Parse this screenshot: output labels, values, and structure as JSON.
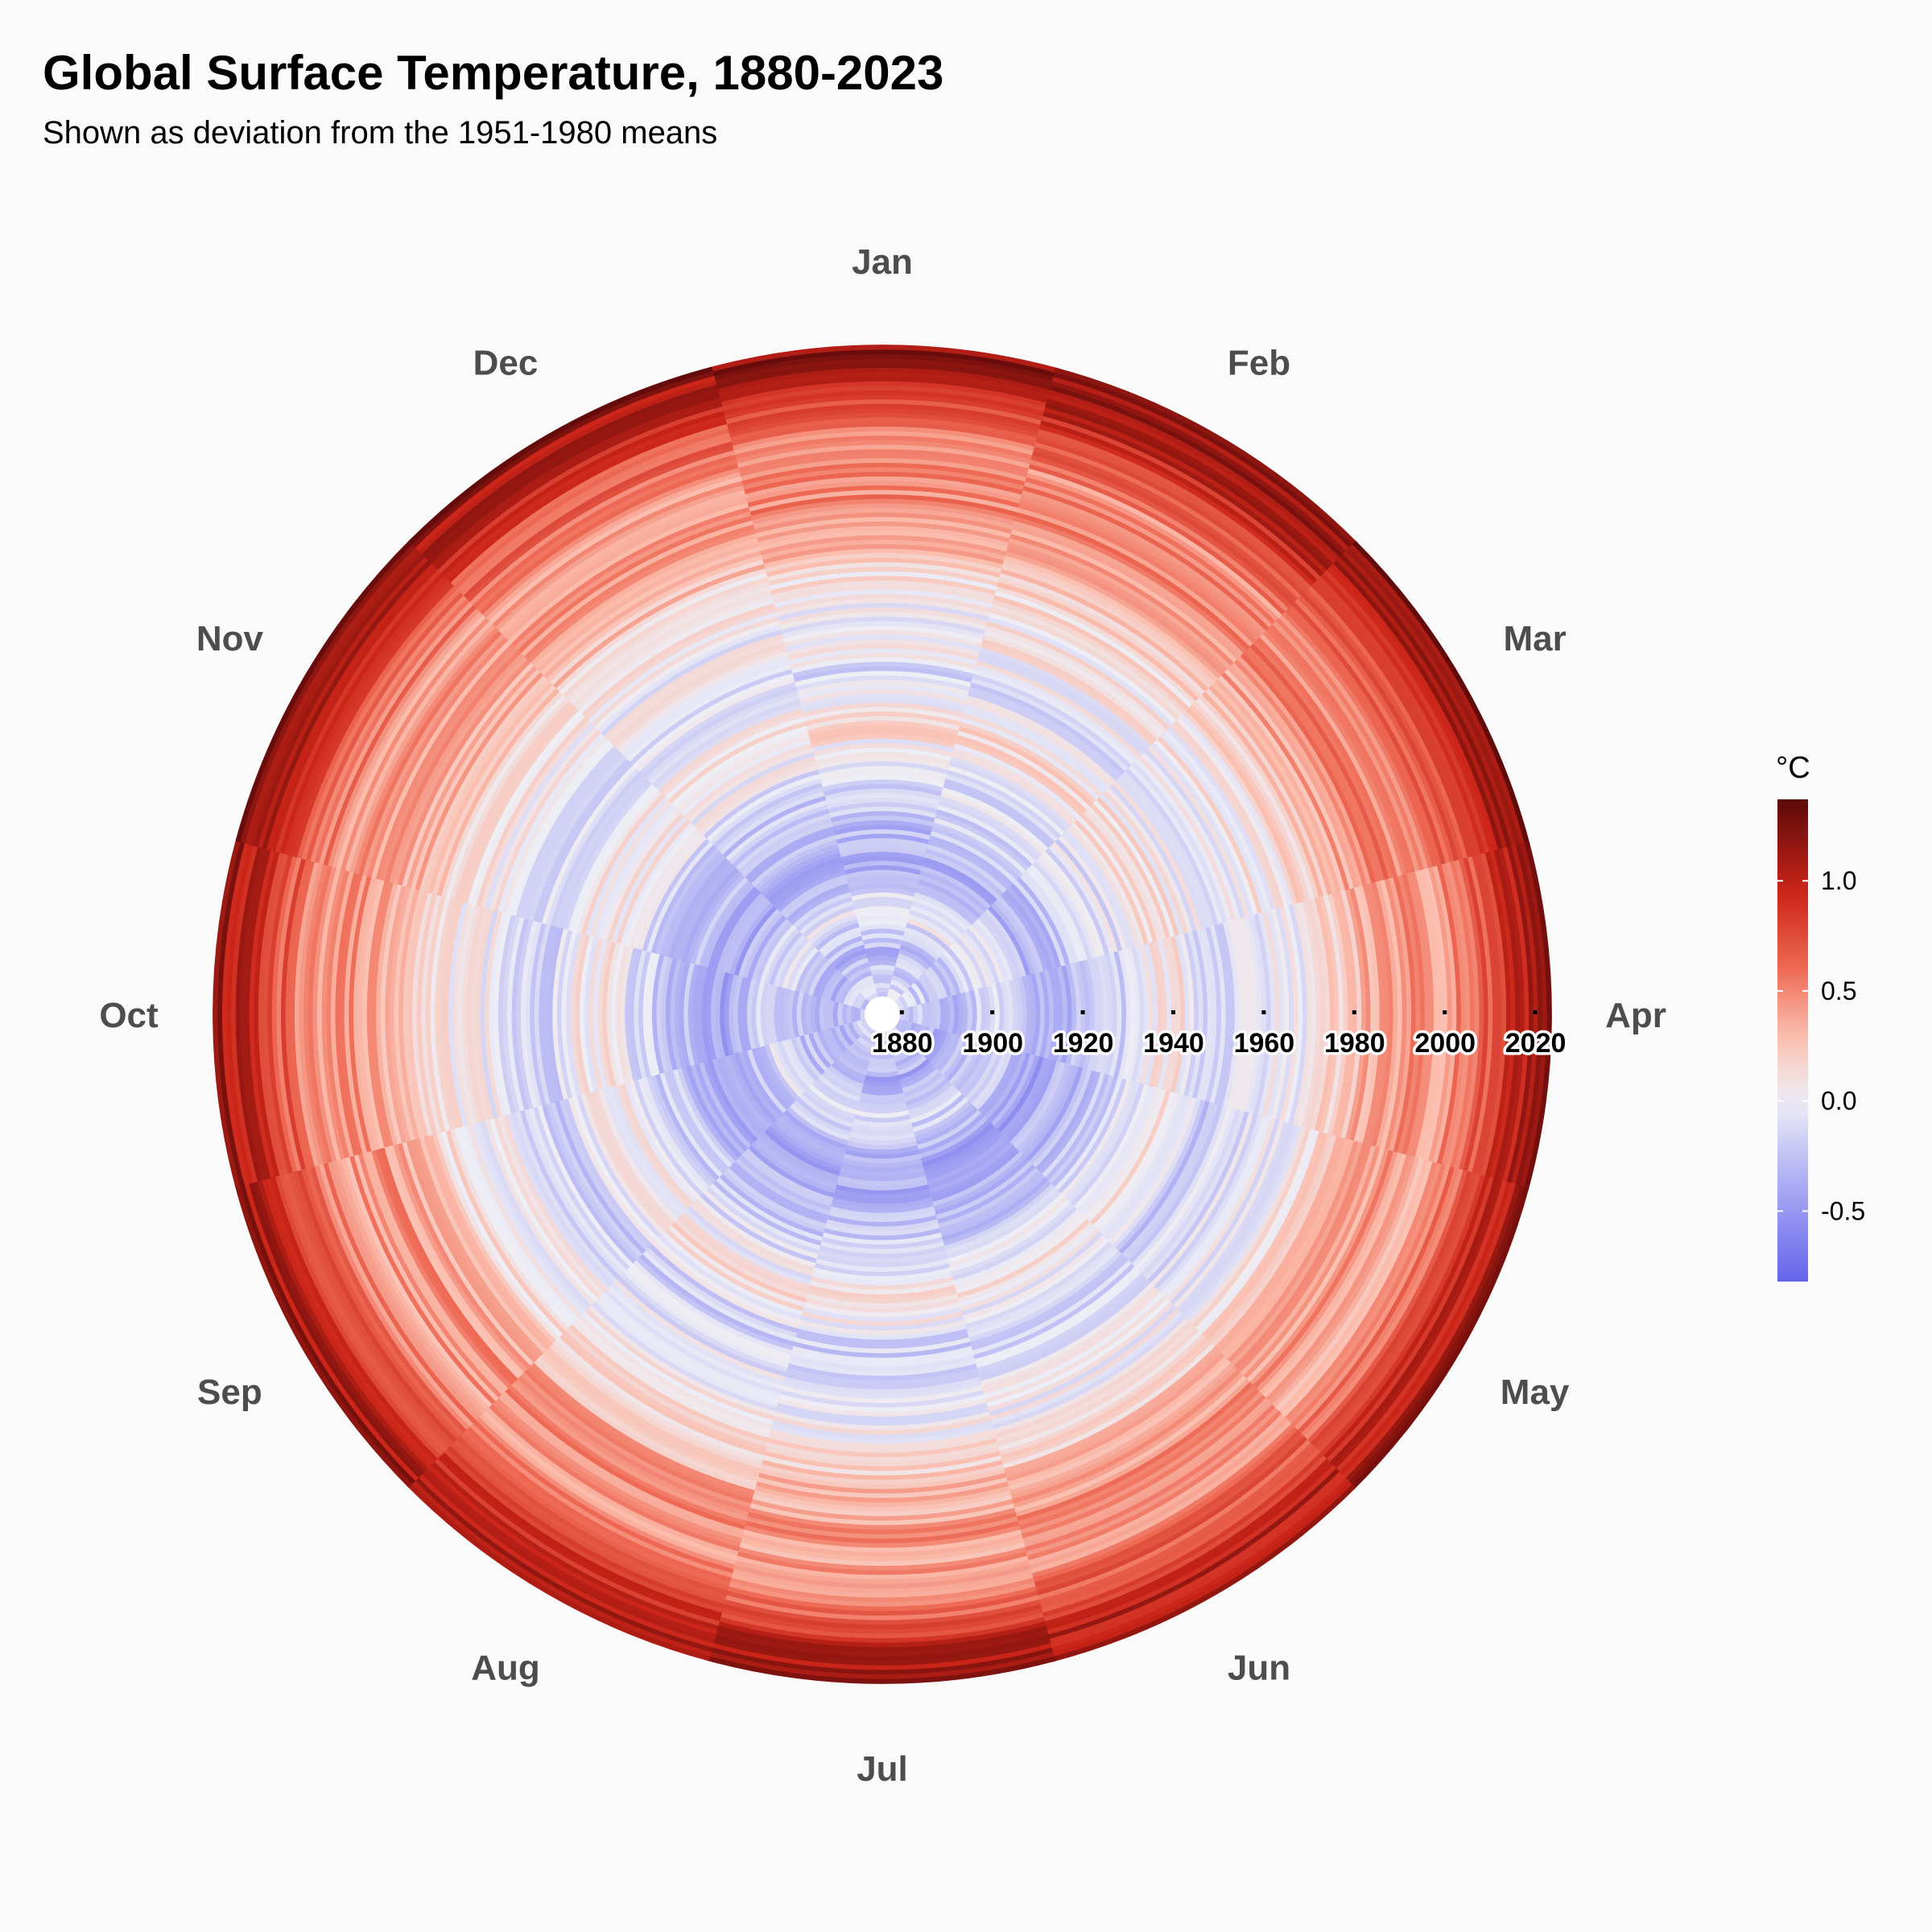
{
  "chart_data": {
    "type": "radial-heatmap",
    "title": "Global Surface Temperature, 1880-2023",
    "subtitle": "Shown as deviation from the 1951-1980 means",
    "year_range": [
      1880,
      2023
    ],
    "months": [
      "Jan",
      "Feb",
      "Mar",
      "Apr",
      "May",
      "Jun",
      "Jul",
      "Aug",
      "Sep",
      "Oct",
      "Nov",
      "Dec"
    ],
    "year_ticks": [
      1880,
      1900,
      1920,
      1940,
      1960,
      1980,
      2000,
      2020
    ],
    "legend": {
      "title": "°C",
      "range": [
        -0.82,
        1.37
      ],
      "ticks": [
        -0.5,
        0.0,
        0.5,
        1.0
      ],
      "tick_labels": [
        "-0.5",
        "0.0",
        "0.5",
        "1.0"
      ]
    },
    "colors": {
      "low": "#6464EB",
      "mid": "#EEEEF6",
      "high": "#5C0A0A",
      "stops": [
        {
          "value": -0.82,
          "color": "#6464EB"
        },
        {
          "value": -0.4,
          "color": "#A8A8F4"
        },
        {
          "value": 0.0,
          "color": "#EEEEF6"
        },
        {
          "value": 0.3,
          "color": "#FBBEAE"
        },
        {
          "value": 0.6,
          "color": "#EE6A55"
        },
        {
          "value": 0.95,
          "color": "#CB2418"
        },
        {
          "value": 1.37,
          "color": "#5C0A0A"
        }
      ]
    },
    "annual_mean_anomaly": [
      {
        "year": 1880,
        "value": -0.17
      },
      {
        "year": 1890,
        "value": -0.34
      },
      {
        "year": 1900,
        "value": -0.08
      },
      {
        "year": 1910,
        "value": -0.43
      },
      {
        "year": 1920,
        "value": -0.27
      },
      {
        "year": 1930,
        "value": -0.14
      },
      {
        "year": 1940,
        "value": 0.12
      },
      {
        "year": 1950,
        "value": -0.17
      },
      {
        "year": 1960,
        "value": -0.03
      },
      {
        "year": 1970,
        "value": 0.03
      },
      {
        "year": 1980,
        "value": 0.26
      },
      {
        "year": 1990,
        "value": 0.45
      },
      {
        "year": 2000,
        "value": 0.39
      },
      {
        "year": 2010,
        "value": 0.72
      },
      {
        "year": 2016,
        "value": 1.01
      },
      {
        "year": 2020,
        "value": 1.02
      },
      {
        "year": 2023,
        "value": 1.17
      }
    ],
    "month_offsets": [
      0.04,
      0.08,
      0.07,
      0.01,
      -0.02,
      -0.02,
      -0.01,
      0.0,
      0.0,
      0.0,
      0.01,
      0.02
    ]
  }
}
